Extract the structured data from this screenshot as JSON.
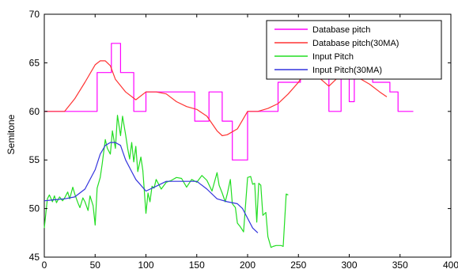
{
  "chart_data": {
    "type": "line",
    "title": "",
    "xlabel": "",
    "ylabel": "Semitone",
    "xlim": [
      0,
      400
    ],
    "ylim": [
      45,
      70
    ],
    "x_ticks": [
      "0",
      "50",
      "100",
      "150",
      "200",
      "250",
      "300",
      "350",
      "400"
    ],
    "y_ticks": [
      "45",
      "50",
      "55",
      "60",
      "65",
      "70"
    ],
    "grid": false,
    "legend_position": "top-right",
    "series": [
      {
        "name": "Database pitch",
        "color": "#ff00ff",
        "x": [
          0,
          25,
          25,
          52,
          52,
          66,
          66,
          75,
          75,
          88,
          88,
          100,
          100,
          148,
          148,
          162,
          162,
          175,
          175,
          185,
          185,
          200,
          200,
          230,
          230,
          252,
          252,
          280,
          280,
          292,
          292,
          300,
          300,
          305,
          305,
          323,
          323,
          340,
          340,
          348,
          348,
          363
        ],
        "y": [
          60,
          60,
          60,
          60,
          64,
          64,
          67,
          67,
          64,
          64,
          60,
          60,
          62,
          62,
          59,
          59,
          62,
          62,
          59,
          59,
          55,
          55,
          60,
          60,
          63,
          63,
          67,
          67,
          60,
          60,
          64,
          64,
          61,
          61,
          64,
          64,
          63,
          63,
          62,
          62,
          60,
          60
        ]
      },
      {
        "name": "Database pitch(30MA)",
        "color": "#ff3333",
        "x": [
          0,
          20,
          30,
          40,
          50,
          55,
          60,
          65,
          70,
          80,
          90,
          100,
          110,
          120,
          130,
          140,
          150,
          160,
          170,
          175,
          180,
          190,
          200,
          210,
          220,
          230,
          240,
          250,
          260,
          270,
          280,
          290,
          300,
          310,
          320,
          330,
          337
        ],
        "y": [
          60,
          60,
          61.3,
          63,
          64.8,
          65.2,
          65.2,
          64.7,
          63.3,
          62,
          61.2,
          62,
          62,
          61.8,
          61,
          60.5,
          60.2,
          59.5,
          58,
          57.5,
          57.6,
          58.2,
          60,
          60,
          60.3,
          60.8,
          61.8,
          63,
          64.6,
          63.5,
          62.6,
          63.6,
          63.6,
          63.4,
          62.8,
          62,
          61.5
        ]
      },
      {
        "name": "Input Pitch",
        "color": "#22dd22",
        "x": [
          0,
          3,
          5,
          8,
          10,
          12,
          15,
          18,
          20,
          23,
          25,
          28,
          30,
          33,
          35,
          38,
          40,
          43,
          45,
          48,
          50,
          52,
          55,
          57,
          60,
          62,
          65,
          67,
          70,
          72,
          75,
          77,
          80,
          82,
          84,
          86,
          88,
          90,
          92,
          95,
          97,
          100,
          102,
          104,
          106,
          108,
          110,
          115,
          120,
          125,
          130,
          135,
          140,
          145,
          150,
          155,
          160,
          165,
          170,
          172,
          175,
          178,
          180,
          183,
          185,
          188,
          190,
          193,
          196,
          200,
          203,
          205,
          207,
          209,
          211,
          213,
          215,
          218,
          220,
          223,
          225,
          228,
          230,
          233,
          235,
          238,
          240
        ],
        "y": [
          48,
          51,
          51.4,
          50.7,
          51.3,
          50.6,
          51.2,
          50.8,
          51.1,
          51.7,
          51,
          52.2,
          51.5,
          50.6,
          50.1,
          51.1,
          50.7,
          49.8,
          51.3,
          50.3,
          48.3,
          52.1,
          53.2,
          54.6,
          57.1,
          56.2,
          55.6,
          58,
          56.2,
          59.6,
          57.5,
          59.5,
          57.6,
          56.2,
          55.1,
          56.8,
          54.8,
          56.4,
          53.8,
          55.3,
          53.9,
          49.5,
          51.6,
          50.7,
          52.3,
          52.1,
          53,
          52,
          52.7,
          52.9,
          53.2,
          53.1,
          52.2,
          53,
          52.7,
          53.4,
          52.9,
          51.8,
          53.7,
          52.4,
          51.6,
          50.7,
          51.5,
          53,
          50.5,
          50.1,
          48.5,
          48.1,
          47.6,
          53.2,
          53.3,
          52.5,
          52.6,
          48.6,
          52.6,
          52.4,
          49.3,
          49.6,
          47.1,
          46,
          46.1,
          46.2,
          46.2,
          46.2,
          46.1,
          51.5,
          51.4
        ]
      },
      {
        "name": "Input Pitch(30MA)",
        "color": "#3333dd",
        "x": [
          0,
          10,
          20,
          30,
          40,
          50,
          55,
          60,
          65,
          70,
          75,
          80,
          85,
          90,
          100,
          110,
          120,
          130,
          140,
          150,
          160,
          170,
          180,
          190,
          195,
          200,
          205,
          210
        ],
        "y": [
          50.8,
          50.9,
          51,
          51.2,
          52,
          54,
          55.6,
          56.5,
          56.8,
          56.8,
          56.5,
          55,
          54,
          53,
          51.8,
          52.3,
          52.8,
          52.8,
          52.8,
          52.8,
          52,
          51,
          50.7,
          50.5,
          50,
          49,
          48,
          47.5
        ]
      }
    ]
  }
}
